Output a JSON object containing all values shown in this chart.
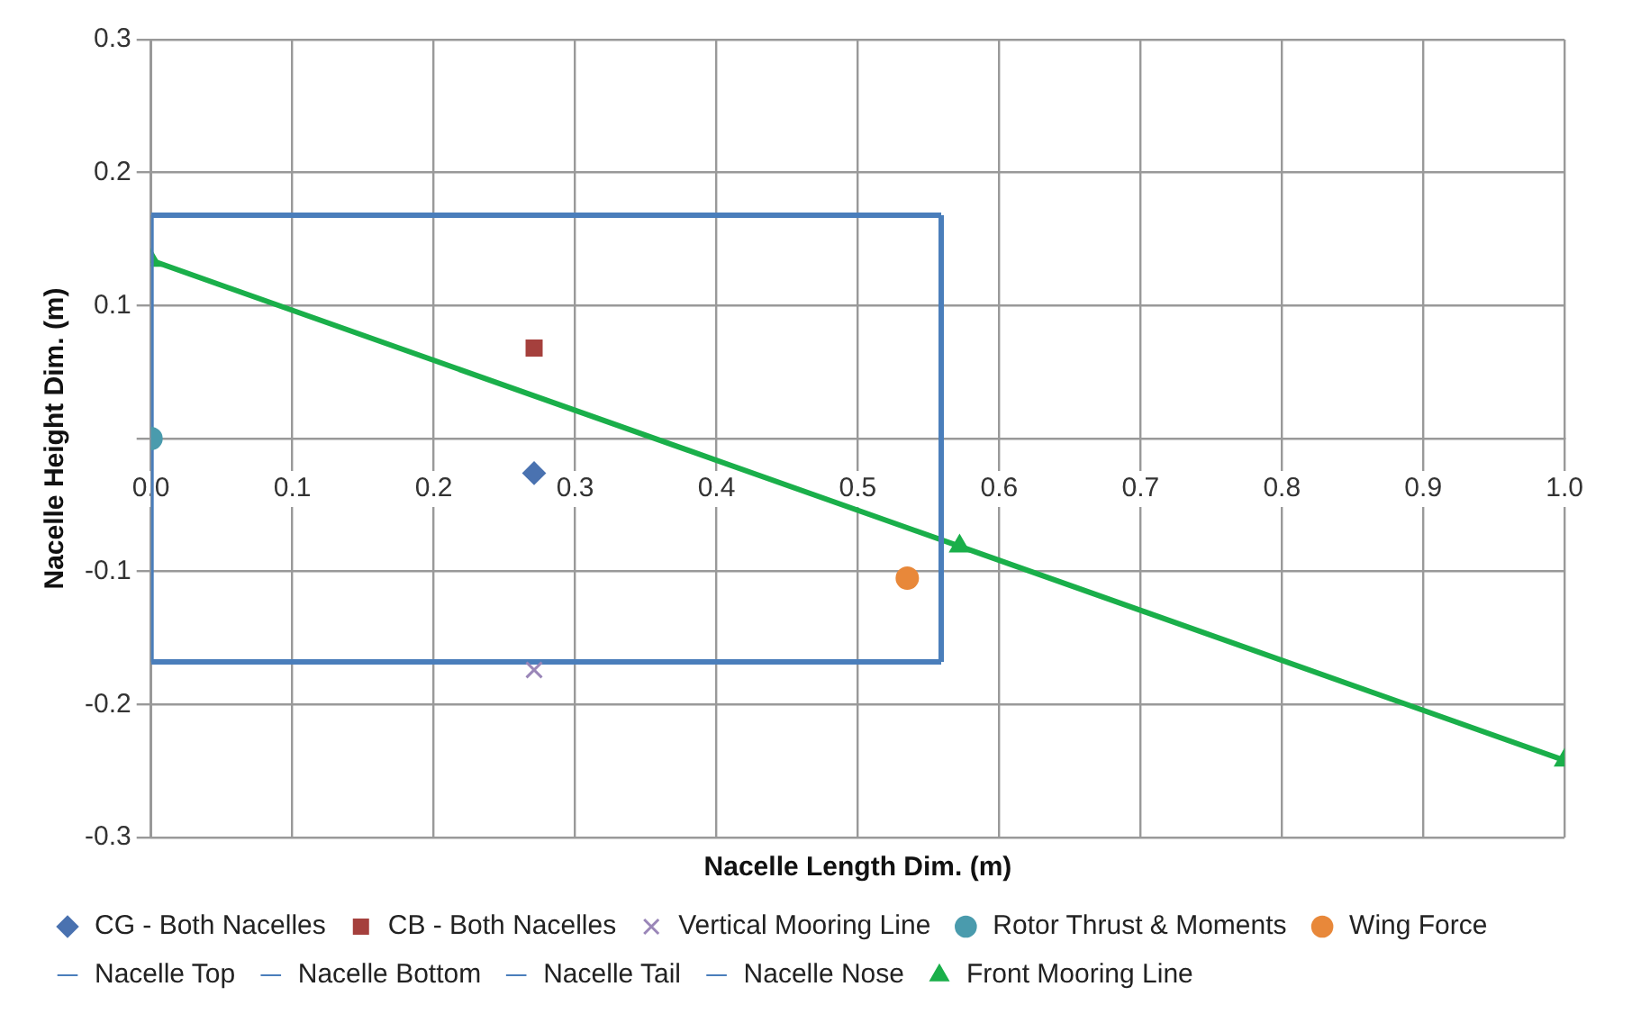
{
  "chart_data": {
    "type": "scatter",
    "xlabel": "Nacelle Length Dim. (m)",
    "ylabel": "Nacelle Height Dim. (m)",
    "xlim": [
      0,
      1.0
    ],
    "xticks": [
      {
        "value": 0,
        "label": "0.0"
      },
      0.1,
      0.2,
      0.3,
      0.4,
      0.5,
      0.6,
      0.7,
      0.8,
      0.9,
      {
        "value": 1.0,
        "label": "1.0"
      }
    ],
    "ylim": [
      -0.3,
      0.3
    ],
    "yticks": [
      0.3,
      0.2,
      0.1,
      {
        "value": 0,
        "label": null
      },
      -0.1,
      -0.2,
      -0.3
    ],
    "grid": true,
    "legend": "bottom",
    "series": [
      {
        "name": "CG - Both Nacelles",
        "type": "scatter",
        "marker": "diamond",
        "color": "#4a72b0",
        "x": [
          0.271
        ],
        "values": [
          -0.026
        ]
      },
      {
        "name": "CB - Both Nacelles",
        "type": "scatter",
        "marker": "square",
        "color": "#a5403d",
        "x": [
          0.271
        ],
        "values": [
          0.068
        ]
      },
      {
        "name": "Vertical Mooring Line",
        "type": "scatter",
        "marker": "cross",
        "color": "#9a86b8",
        "x": [
          0.271
        ],
        "values": [
          -0.174
        ]
      },
      {
        "name": "Rotor Thrust & Moments",
        "type": "scatter",
        "marker": "circle",
        "color": "#4a9bad",
        "x": [
          0
        ],
        "values": [
          0
        ]
      },
      {
        "name": "Wing Force",
        "type": "scatter",
        "marker": "circle",
        "color": "#e8883a",
        "x": [
          0.535
        ],
        "values": [
          -0.105
        ]
      },
      {
        "name": "Nacelle Top",
        "type": "line",
        "marker": "none",
        "color": "#4a7ebb",
        "x": [
          0,
          0.559
        ],
        "values": [
          0.168,
          0.168
        ]
      },
      {
        "name": "Nacelle Bottom",
        "type": "line",
        "marker": "none",
        "color": "#4a7ebb",
        "x": [
          0,
          0.559
        ],
        "values": [
          -0.168,
          -0.168
        ]
      },
      {
        "name": "Nacelle Tail",
        "type": "line",
        "marker": "none",
        "color": "#4a7ebb",
        "x": [
          0,
          0
        ],
        "values": [
          -0.168,
          0.168
        ]
      },
      {
        "name": "Nacelle Nose",
        "type": "line",
        "marker": "none",
        "color": "#4a7ebb",
        "x": [
          0.559,
          0.559
        ],
        "values": [
          -0.168,
          0.168
        ]
      },
      {
        "name": "Front Mooring Line",
        "type": "line",
        "marker": "triangle",
        "color": "#1aaf4a",
        "x": [
          0,
          0.572,
          1.0
        ],
        "values": [
          0.134,
          -0.081,
          -0.242
        ]
      }
    ]
  }
}
